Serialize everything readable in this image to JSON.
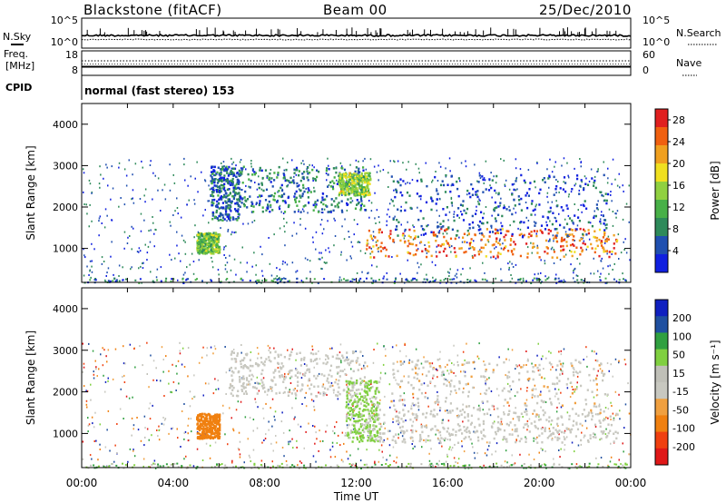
{
  "header": {
    "station": "Blackstone (fitACF)",
    "beam": "Beam 00",
    "date": "25/Dec/2010"
  },
  "strips": {
    "nsky_label": "N.Sky",
    "nsearch_label": "N.Search",
    "noise_ticks_left": [
      "10^5",
      "10^0"
    ],
    "noise_ticks_right": [
      "10^5",
      "10^0"
    ],
    "freq_label_top": "Freq.",
    "freq_label_unit": "[MHz]",
    "freq_ticks": [
      "18",
      "8"
    ],
    "nave_label": "Nave",
    "nave_ticks": [
      "60",
      "0"
    ],
    "cpid_label": "CPID",
    "cpid_text": "normal (fast stereo) 153"
  },
  "colors": {
    "power": [
      "#1020e0",
      "#2050b0",
      "#2e8a5a",
      "#48b048",
      "#90d040",
      "#f0e020",
      "#f0a020",
      "#f06010",
      "#e02020"
    ],
    "velocity": [
      "#e01818",
      "#f04010",
      "#f08010",
      "#f0a040",
      "#c8c8c0",
      "#c0c0b8",
      "#80d040",
      "#30a040",
      "#2050a0",
      "#1020c0"
    ]
  },
  "chart_data": [
    {
      "type": "heatmap",
      "quantity": "Power",
      "ylabel": "Slant Range [km]",
      "ylim": [
        180,
        4500
      ],
      "yticks": [
        1000,
        2000,
        3000,
        4000
      ],
      "xlim_hours": [
        0,
        24
      ],
      "colorbar_label": "Power [dB]",
      "colorbar_ticks": [
        4,
        8,
        12,
        16,
        20,
        24,
        28
      ],
      "colorbar_range": [
        0,
        30
      ],
      "regions": [
        {
          "t": [
            5.0,
            6.0
          ],
          "r": [
            900,
            1400
          ],
          "level": 0.45
        },
        {
          "t": [
            5.6,
            6.9
          ],
          "r": [
            1700,
            3000
          ],
          "level": 0.2
        },
        {
          "t": [
            6.8,
            12.4
          ],
          "r": [
            1900,
            3000
          ],
          "level": 0.25
        },
        {
          "t": [
            11.2,
            12.6
          ],
          "r": [
            2300,
            2850
          ],
          "level": 0.5
        },
        {
          "t": [
            12.4,
            23.4
          ],
          "r": [
            800,
            1500
          ],
          "level": 0.8
        },
        {
          "t": [
            13.5,
            23.0
          ],
          "r": [
            1300,
            2800
          ],
          "level": 0.15
        }
      ]
    },
    {
      "type": "heatmap",
      "quantity": "Velocity",
      "ylabel": "Slant Range [km]",
      "xlabel": "Time UT",
      "ylim": [
        180,
        4500
      ],
      "yticks": [
        1000,
        2000,
        3000,
        4000
      ],
      "xlim_hours": [
        0,
        24
      ],
      "xticks": [
        "00:00",
        "04:00",
        "08:00",
        "12:00",
        "16:00",
        "20:00",
        "00:00"
      ],
      "colorbar_label": "Velocity [m s⁻¹]",
      "colorbar_ticks": [
        200,
        100,
        50,
        15,
        -15,
        -50,
        -100,
        -200
      ],
      "regions": [
        {
          "t": [
            5.0,
            6.0
          ],
          "r": [
            900,
            1500
          ],
          "velocity": -80
        },
        {
          "t": [
            6.4,
            12.4
          ],
          "r": [
            1900,
            3000
          ],
          "velocity": 0
        },
        {
          "t": [
            11.5,
            13.0
          ],
          "r": [
            800,
            2300
          ],
          "velocity": 30
        },
        {
          "t": [
            12.4,
            23.4
          ],
          "r": [
            800,
            1500
          ],
          "velocity": 0
        },
        {
          "t": [
            13.5,
            23.0
          ],
          "r": [
            1400,
            2800
          ],
          "velocity": -5
        }
      ]
    }
  ]
}
